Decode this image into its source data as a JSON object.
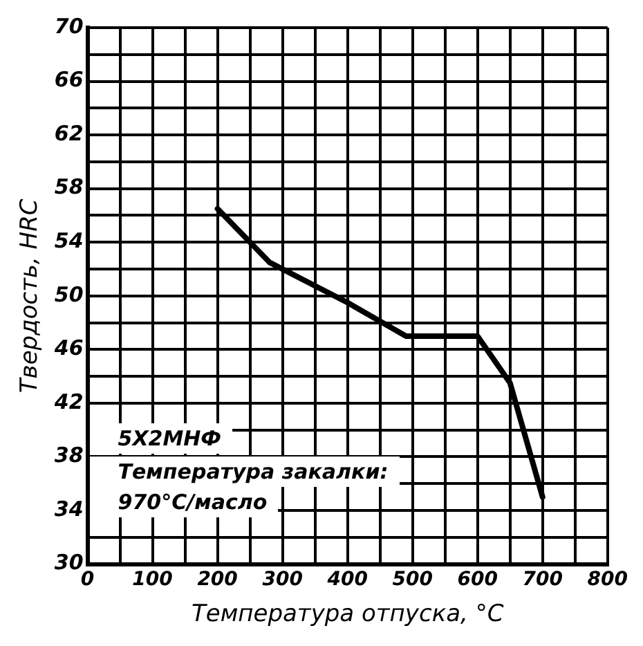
{
  "chart_data": {
    "type": "line",
    "xlabel": "Температура отпуска, °C",
    "ylabel": "Твердость, HRC",
    "x": [
      200,
      280,
      400,
      490,
      600,
      650,
      700
    ],
    "series": [
      {
        "color": "#000000",
        "values": [
          56.5,
          52.5,
          49.5,
          47,
          47,
          43.5,
          35
        ]
      }
    ],
    "xlim": [
      0,
      800
    ],
    "xticks": [
      0,
      {
        "value": 50,
        "label": null
      },
      100,
      {
        "value": 150,
        "label": null
      },
      200,
      {
        "value": 250,
        "label": null
      },
      300,
      {
        "value": 350,
        "label": null
      },
      400,
      {
        "value": 450,
        "label": null
      },
      500,
      {
        "value": 550,
        "label": null
      },
      600,
      {
        "value": 650,
        "label": null
      },
      700,
      {
        "value": 750,
        "label": null
      },
      800
    ],
    "ylim": [
      30,
      70
    ],
    "yticks": [
      30,
      {
        "value": 32,
        "label": null
      },
      34,
      {
        "value": 36,
        "label": null
      },
      38,
      {
        "value": 40,
        "label": null
      },
      42,
      {
        "value": 44,
        "label": null
      },
      46,
      {
        "value": 48,
        "label": null
      },
      50,
      {
        "value": 52,
        "label": null
      },
      54,
      {
        "value": 56,
        "label": null
      },
      58,
      {
        "value": 60,
        "label": null
      },
      62,
      {
        "value": 64,
        "label": null
      },
      66,
      {
        "value": 68,
        "label": null
      },
      70
    ],
    "grid": true,
    "marker": "none",
    "legend": false,
    "annotations": [
      "5Х2МНФ",
      "Температура закалки:",
      "970°C/масло"
    ]
  }
}
